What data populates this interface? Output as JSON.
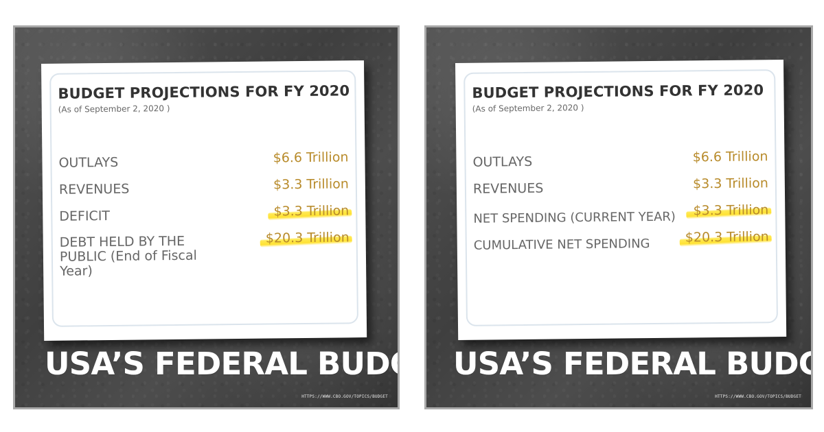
{
  "left_panel": {
    "card_title": "BUDGET PROJECTIONS FOR FY 2020",
    "as_of": "(As of September 2, 2020 )",
    "rows": [
      {
        "label": "OUTLAYS",
        "value": "$6.6 Trillion"
      },
      {
        "label": "REVENUES",
        "value": "$3.3 Trillion"
      },
      {
        "label": "DEFICIT",
        "value": "$3.3 Trillion"
      },
      {
        "label_lines": [
          "DEBT HELD BY THE",
          "PUBLIC (End of Fiscal",
          "Year)"
        ],
        "value": "$20.3 Trillion"
      }
    ],
    "footer_title": "USA’S FEDERAL BUDGET",
    "source": "HTTPS://WWW.CBO.GOV/TOPICS/BUDGET"
  },
  "right_panel": {
    "card_title": "BUDGET PROJECTIONS FOR FY 2020",
    "as_of": "(As of September 2, 2020 )",
    "rows": [
      {
        "label": "OUTLAYS",
        "value": "$6.6 Trillion"
      },
      {
        "label": "REVENUES",
        "value": "$3.3 Trillion"
      },
      {
        "label": "NET SPENDING (CURRENT YEAR)",
        "value": "$3.3 Trillion"
      },
      {
        "label": "CUMULATIVE NET SPENDING",
        "value": "$20.3 Trillion"
      }
    ],
    "footer_title": "USA’S FEDERAL BUDGET",
    "source": "HTTPS://WWW.CBO.GOV/TOPICS/BUDGET"
  },
  "colors": {
    "value_gold": "#b88b2b",
    "highlight_yellow": "#ffe03c",
    "panel_dark": "#444444",
    "card_white": "#ffffff"
  }
}
